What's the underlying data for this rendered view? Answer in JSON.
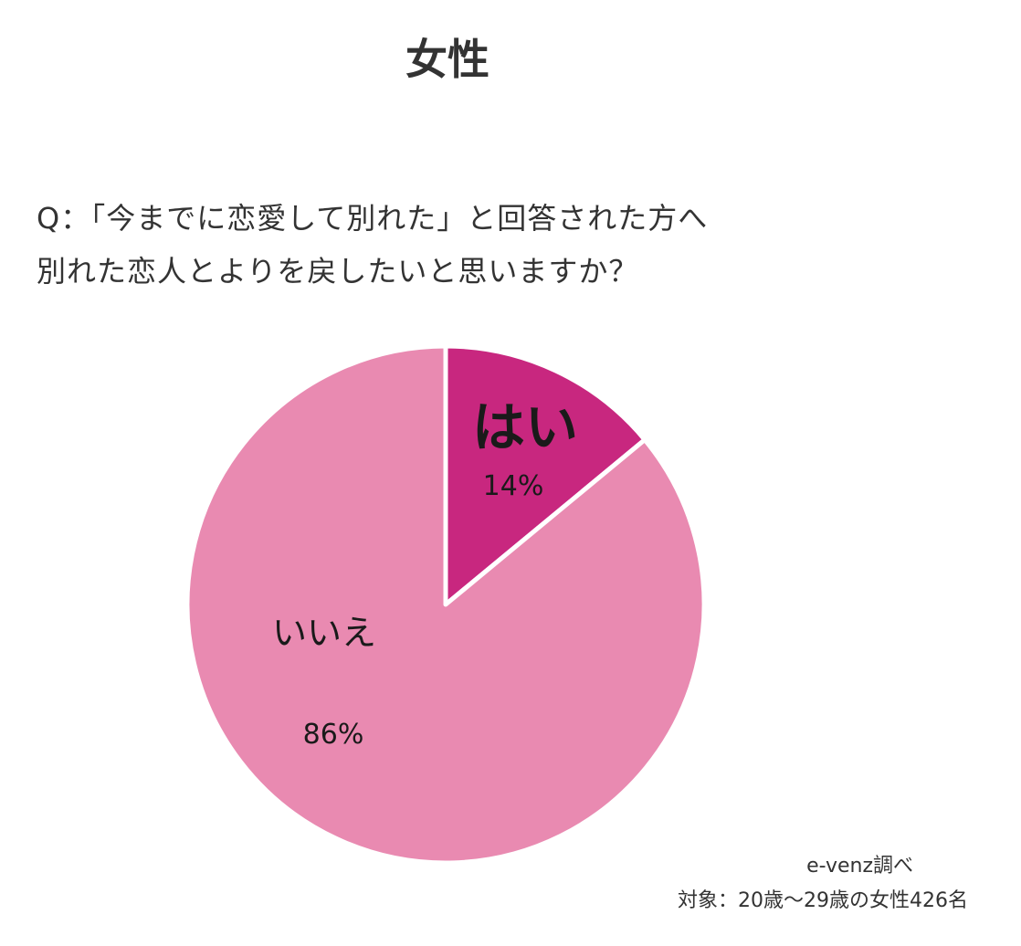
{
  "title": "女性",
  "question": {
    "line1": "Q：「今までに恋愛して別れた」と回答された方へ",
    "line2": "別れた恋人とよりを戻したいと思いますか？"
  },
  "chart_data": {
    "type": "pie",
    "title": "",
    "slices": [
      {
        "label": "はい",
        "value": 14,
        "value_label": "14%",
        "color": "#c8277f"
      },
      {
        "label": "いいえ",
        "value": 86,
        "value_label": "86%",
        "color": "#e98ab1"
      }
    ],
    "start_angle": "12 o'clock",
    "direction": "clockwise",
    "separator_color": "#ffffff"
  },
  "credit": {
    "line1": "e-venz調べ",
    "line2": "対象：20歳〜29歳の女性426名"
  }
}
